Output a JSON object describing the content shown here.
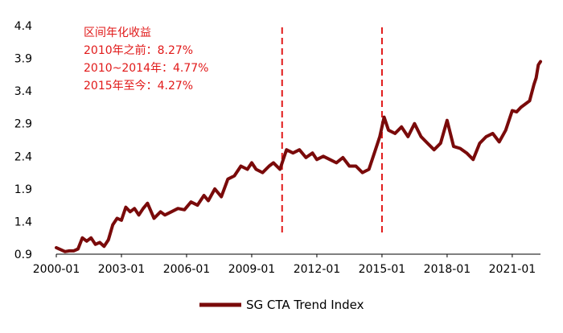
{
  "chart_data": {
    "type": "line",
    "title": "",
    "xlabel": "",
    "ylabel": "",
    "ylim": [
      0.9,
      4.4
    ],
    "y_ticks": [
      "0.9",
      "1.4",
      "1.9",
      "2.4",
      "2.9",
      "3.4",
      "3.9",
      "4.4"
    ],
    "x_ticks": [
      "2000-01",
      "2003-01",
      "2006-01",
      "2009-01",
      "2012-01",
      "2015-01",
      "2018-01",
      "2021-01"
    ],
    "x_range": [
      2000.0,
      2022.3
    ],
    "series": [
      {
        "name": "SG CTA Trend Index",
        "color": "#7a0a0a",
        "x": [
          2000.0,
          2000.2,
          2000.4,
          2000.6,
          2000.8,
          2001.0,
          2001.2,
          2001.4,
          2001.6,
          2001.8,
          2002.0,
          2002.2,
          2002.4,
          2002.6,
          2002.8,
          2003.0,
          2003.2,
          2003.4,
          2003.6,
          2003.8,
          2004.0,
          2004.2,
          2004.5,
          2004.8,
          2005.0,
          2005.3,
          2005.6,
          2005.9,
          2006.2,
          2006.5,
          2006.8,
          2007.0,
          2007.3,
          2007.6,
          2007.9,
          2008.2,
          2008.5,
          2008.8,
          2009.0,
          2009.2,
          2009.5,
          2009.8,
          2010.0,
          2010.3,
          2010.6,
          2010.9,
          2011.2,
          2011.5,
          2011.8,
          2012.0,
          2012.3,
          2012.6,
          2012.9,
          2013.2,
          2013.5,
          2013.8,
          2014.1,
          2014.4,
          2014.7,
          2014.9,
          2015.1,
          2015.3,
          2015.6,
          2015.9,
          2016.2,
          2016.5,
          2016.8,
          2017.1,
          2017.4,
          2017.7,
          2018.0,
          2018.3,
          2018.6,
          2018.9,
          2019.2,
          2019.5,
          2019.8,
          2020.1,
          2020.4,
          2020.7,
          2021.0,
          2021.2,
          2021.4,
          2021.6,
          2021.8,
          2022.0,
          2022.1,
          2022.2,
          2022.3
        ],
        "values": [
          1.0,
          0.97,
          0.94,
          0.95,
          0.95,
          0.98,
          1.15,
          1.1,
          1.15,
          1.05,
          1.08,
          1.02,
          1.12,
          1.35,
          1.45,
          1.42,
          1.62,
          1.55,
          1.6,
          1.5,
          1.6,
          1.68,
          1.45,
          1.55,
          1.5,
          1.55,
          1.6,
          1.58,
          1.7,
          1.65,
          1.8,
          1.72,
          1.9,
          1.78,
          2.05,
          2.1,
          2.25,
          2.2,
          2.3,
          2.2,
          2.15,
          2.25,
          2.3,
          2.2,
          2.5,
          2.45,
          2.5,
          2.38,
          2.45,
          2.35,
          2.4,
          2.35,
          2.3,
          2.38,
          2.25,
          2.25,
          2.15,
          2.2,
          2.5,
          2.7,
          3.0,
          2.8,
          2.75,
          2.85,
          2.7,
          2.9,
          2.7,
          2.6,
          2.5,
          2.6,
          2.95,
          2.55,
          2.52,
          2.45,
          2.35,
          2.6,
          2.7,
          2.75,
          2.62,
          2.8,
          3.1,
          3.08,
          3.15,
          3.2,
          3.25,
          3.5,
          3.6,
          3.8,
          3.85
        ]
      }
    ],
    "vlines": [
      {
        "x": 2010.4,
        "style": "dashed",
        "color": "#e11919"
      },
      {
        "x": 2015.0,
        "style": "dashed",
        "color": "#e11919"
      }
    ],
    "annotations": [
      "区间年化收益",
      "2010年之前：8.27%",
      "2010~2014年：4.77%",
      "2015年至今：4.27%"
    ],
    "legend": {
      "position": "bottom",
      "label": "SG CTA Trend Index"
    }
  }
}
